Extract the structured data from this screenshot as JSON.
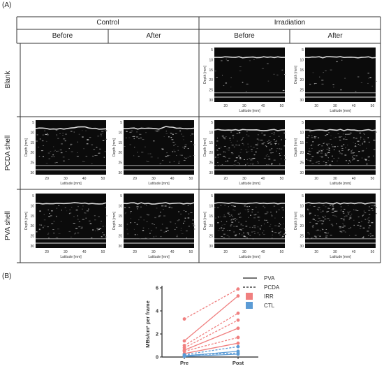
{
  "figure": {
    "panel_a": "(A)",
    "panel_b": "(B)",
    "groups": [
      {
        "label": "Control",
        "conditions": [
          "Before",
          "After"
        ]
      },
      {
        "label": "Irradiation",
        "conditions": [
          "Before",
          "After"
        ]
      }
    ],
    "rows": [
      "Blank",
      "PCDA shell",
      "PVA shell"
    ],
    "ultrasound_axes": {
      "x_label": "Latitude [mm]",
      "y_label": "Depth [mm]",
      "x_ticks": [
        "20",
        "30",
        "40",
        "50"
      ],
      "y_ticks": [
        "5",
        "10",
        "15",
        "20",
        "25",
        "30"
      ]
    }
  },
  "chart_data": {
    "type": "line",
    "ylabel": "MBs/cm² per frame",
    "xlabel": "",
    "categories": [
      "Pre",
      "Post"
    ],
    "ylim": [
      0,
      6
    ],
    "y_ticks": [
      "0",
      "2",
      "4",
      "6"
    ],
    "legend": [
      {
        "label": "PVA",
        "kind": "line-solid"
      },
      {
        "label": "PCDA",
        "kind": "line-dashed"
      },
      {
        "label": "IRR",
        "kind": "swatch",
        "color": "#f08080"
      },
      {
        "label": "CTL",
        "kind": "swatch",
        "color": "#5b9bd5"
      }
    ],
    "series": [
      {
        "shell": "PCDA",
        "group": "IRR",
        "values": [
          3.3,
          5.9
        ]
      },
      {
        "shell": "PVA",
        "group": "IRR",
        "values": [
          1.4,
          5.3
        ]
      },
      {
        "shell": "PCDA",
        "group": "IRR",
        "values": [
          1.0,
          3.8
        ]
      },
      {
        "shell": "PCDA",
        "group": "IRR",
        "values": [
          0.8,
          3.2
        ]
      },
      {
        "shell": "PVA",
        "group": "IRR",
        "values": [
          0.6,
          2.5
        ]
      },
      {
        "shell": "PCDA",
        "group": "IRR",
        "values": [
          0.5,
          1.7
        ]
      },
      {
        "shell": "PVA",
        "group": "IRR",
        "values": [
          0.3,
          1.2
        ]
      },
      {
        "shell": "PCDA",
        "group": "CTL",
        "values": [
          0.2,
          0.9
        ]
      },
      {
        "shell": "PVA",
        "group": "CTL",
        "values": [
          0.1,
          0.5
        ]
      },
      {
        "shell": "PCDA",
        "group": "CTL",
        "values": [
          0.15,
          0.35
        ]
      },
      {
        "shell": "PVA",
        "group": "CTL",
        "values": [
          0.05,
          0.25
        ]
      }
    ],
    "colors": {
      "IRR": "#f08080",
      "CTL": "#5b9bd5"
    }
  }
}
